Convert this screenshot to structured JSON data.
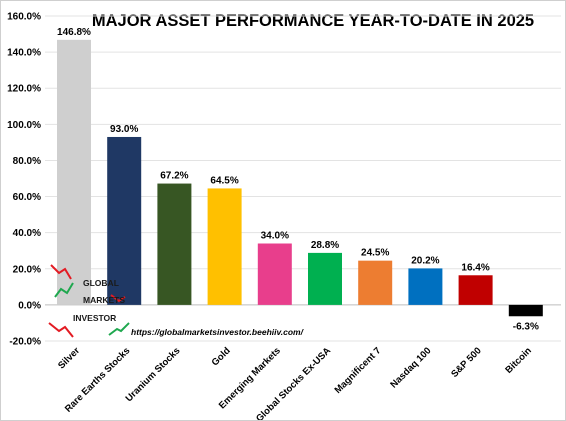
{
  "chart_data": {
    "type": "bar",
    "title": "MAJOR ASSET PERFORMANCE YEAR-TO-DATE IN 2025",
    "categories": [
      "Silver",
      "Rare Earths Stocks",
      "Uranium Stocks",
      "Gold",
      "Emerging Markets",
      "Global Stocks Ex-USA",
      "Magnificent 7",
      "Nasdaq 100",
      "S&P 500",
      "Bitcoin"
    ],
    "values": [
      146.8,
      93.0,
      67.2,
      64.5,
      34.0,
      28.8,
      24.5,
      20.2,
      16.4,
      -6.3
    ],
    "data_labels": [
      "146.8%",
      "93.0%",
      "67.2%",
      "64.5%",
      "34.0%",
      "28.8%",
      "24.5%",
      "20.2%",
      "16.4%",
      "-6.3%"
    ],
    "colors": [
      "#cfcfcf",
      "#1f3864",
      "#375623",
      "#ffc000",
      "#e83e8c",
      "#00b050",
      "#ed7d31",
      "#0070c0",
      "#c00000",
      "#000000"
    ],
    "yticks": [
      "160.0%",
      "140.0%",
      "120.0%",
      "100.0%",
      "80.0%",
      "60.0%",
      "40.0%",
      "20.0%",
      "0.0%",
      "-20.0%"
    ],
    "ylim": [
      -20,
      160
    ],
    "ytick_step": 20,
    "grid": true,
    "xlabel": "",
    "ylabel": ""
  },
  "watermark": {
    "brand_line_1": "GLOBAL",
    "brand_line_2": "MARKETS",
    "brand_line_3": "INVESTOR",
    "url": "https://globalmarketsinvestor.beehiiv.com/"
  }
}
